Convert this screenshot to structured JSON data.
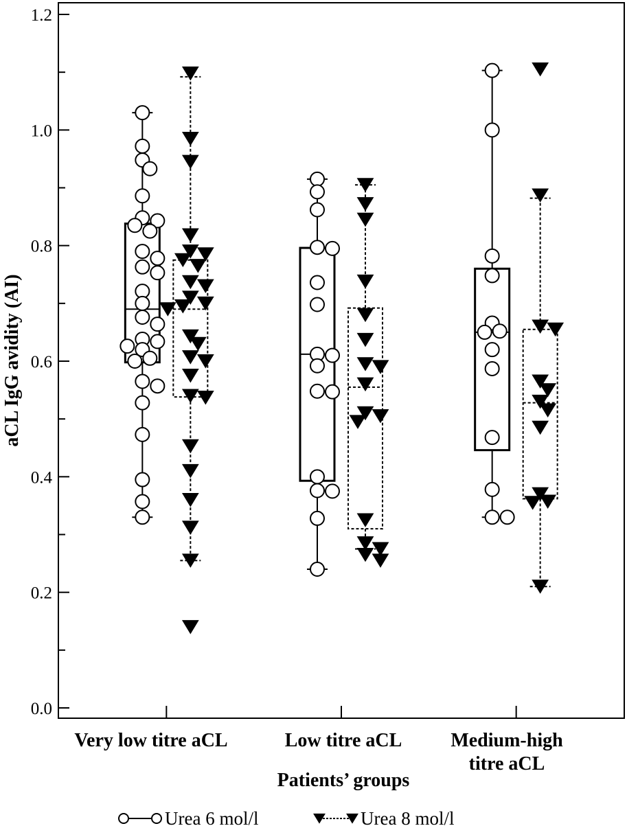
{
  "chart_data": {
    "type": "boxplot",
    "xlabel": "Patients’ groups",
    "ylabel": "aCL IgG avidity (AI)",
    "ylim": [
      0.0,
      1.2
    ],
    "yticks": [
      0.0,
      0.2,
      0.4,
      0.6,
      0.8,
      1.0,
      1.2
    ],
    "ytick_labels": [
      "0.0",
      "0.2",
      "0.4",
      "0.6",
      "0.8",
      "1.0",
      "1.2"
    ],
    "categories": [
      {
        "lines": [
          "Very low titre aCL"
        ]
      },
      {
        "lines": [
          "Low titre aCL"
        ]
      },
      {
        "lines": [
          "Medium-high",
          "titre aCL"
        ]
      }
    ],
    "series": [
      {
        "name": "Urea 6 mol/l",
        "marker": "circle",
        "line": "solid",
        "groups": [
          {
            "q1": 0.598,
            "median": 0.69,
            "q3": 0.838,
            "whisker_low": 0.33,
            "whisker_high": 1.03,
            "points": [
              1.03,
              0.972,
              0.948,
              0.933,
              0.886,
              0.848,
              0.843,
              0.835,
              0.825,
              0.79,
              0.778,
              0.763,
              0.753,
              0.721,
              0.7,
              0.676,
              0.664,
              0.638,
              0.634,
              0.626,
              0.62,
              0.605,
              0.6,
              0.565,
              0.557,
              0.528,
              0.473,
              0.395,
              0.357,
              0.33
            ]
          },
          {
            "q1": 0.393,
            "median": 0.612,
            "q3": 0.796,
            "whisker_low": 0.24,
            "whisker_high": 0.915,
            "points": [
              0.915,
              0.893,
              0.862,
              0.797,
              0.795,
              0.736,
              0.698,
              0.612,
              0.61,
              0.592,
              0.548,
              0.547,
              0.4,
              0.376,
              0.375,
              0.328,
              0.24
            ]
          },
          {
            "q1": 0.446,
            "median": 0.65,
            "q3": 0.76,
            "whisker_low": 0.33,
            "whisker_high": 1.103,
            "points": [
              1.103,
              1.0,
              0.782,
              0.748,
              0.666,
              0.652,
              0.65,
              0.62,
              0.587,
              0.468,
              0.378,
              0.33,
              0.33
            ]
          }
        ]
      },
      {
        "name": "Urea 8 mol/l",
        "marker": "triangle-down",
        "line": "dashed",
        "groups": [
          {
            "q1": 0.538,
            "median": 0.69,
            "q3": 0.775,
            "whisker_low": 0.255,
            "whisker_high": 1.092,
            "points": [
              1.098,
              0.985,
              0.945,
              0.818,
              0.79,
              0.785,
              0.775,
              0.765,
              0.737,
              0.73,
              0.71,
              0.7,
              0.695,
              0.69,
              0.643,
              0.63,
              0.607,
              0.6,
              0.575,
              0.54,
              0.537,
              0.453,
              0.41,
              0.36,
              0.312,
              0.255,
              0.14
            ]
          },
          {
            "q1": 0.31,
            "median": 0.555,
            "q3": 0.692,
            "whisker_low": 0.275,
            "whisker_high": 0.905,
            "points": [
              0.905,
              0.872,
              0.845,
              0.738,
              0.68,
              0.637,
              0.595,
              0.59,
              0.56,
              0.51,
              0.505,
              0.495,
              0.325,
              0.285,
              0.275,
              0.265,
              0.255
            ]
          },
          {
            "q1": 0.362,
            "median": 0.528,
            "q3": 0.655,
            "whisker_low": 0.21,
            "whisker_high": 0.882,
            "points": [
              1.105,
              0.887,
              0.66,
              0.655,
              0.565,
              0.55,
              0.53,
              0.515,
              0.485,
              0.37,
              0.357,
              0.355,
              0.21
            ]
          }
        ]
      }
    ],
    "legend": {
      "position": "bottom"
    },
    "grid": false
  }
}
